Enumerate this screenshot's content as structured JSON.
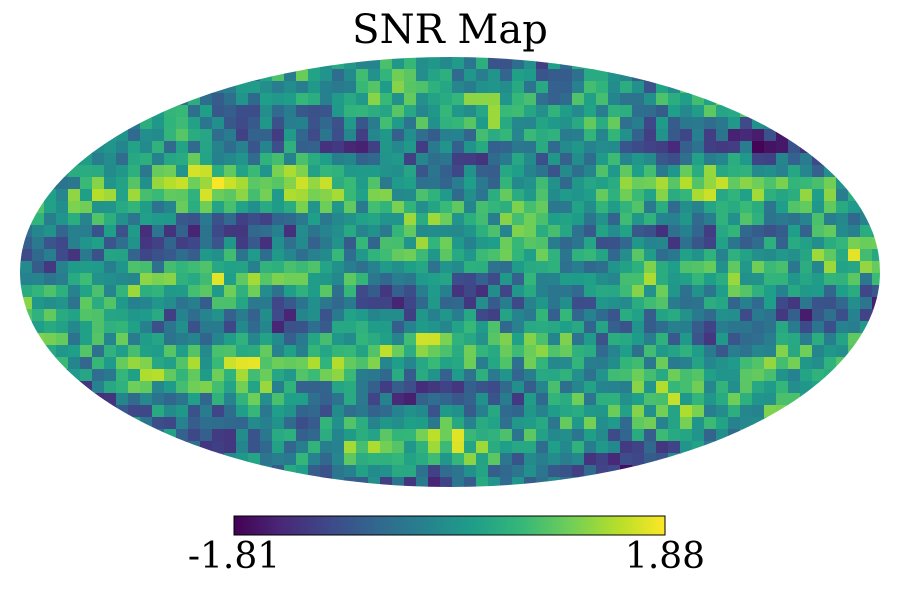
{
  "chart_data": {
    "type": "heatmap",
    "title": "SNR Map",
    "projection": "mollweide",
    "colormap": "viridis",
    "colorbar": {
      "orientation": "horizontal",
      "placement": "bottom",
      "min_label": "-1.81",
      "max_label": "1.88",
      "vmin": -1.81,
      "vmax": 1.88
    },
    "colormap_stops": [
      "#440154",
      "#482878",
      "#3e4989",
      "#31688e",
      "#26828e",
      "#1f9e89",
      "#35b779",
      "#6ece58",
      "#b5de2b",
      "#fde725"
    ],
    "grid": false
  }
}
